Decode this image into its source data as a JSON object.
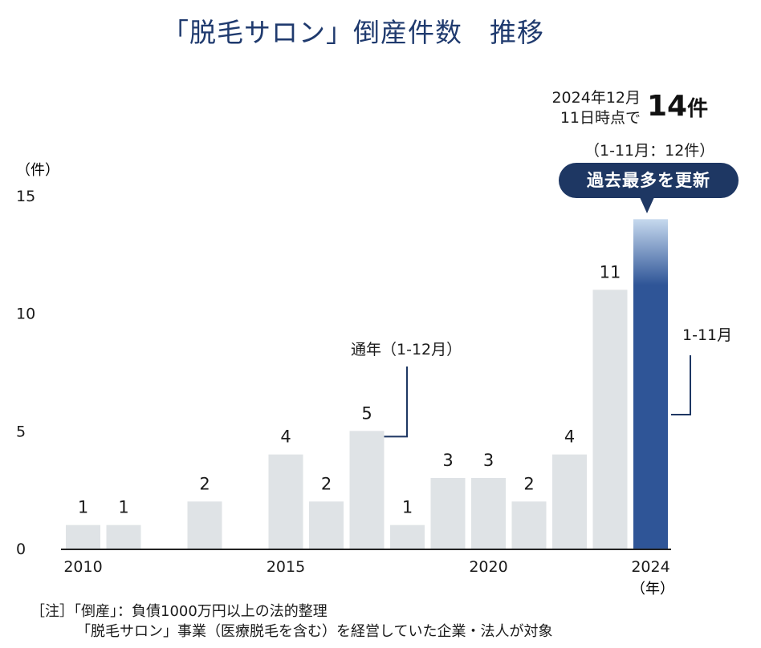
{
  "title": "「脱毛サロン」倒産件数　推移",
  "callout": {
    "date_line1": "2024年12月",
    "date_line2": "11日時点で",
    "count_number": "14",
    "count_unit": "件",
    "subtotal": "（1-11月：12件）",
    "badge": "過去最多を更新"
  },
  "annotations": {
    "full_year": "通年（1-12月）",
    "partial": "1-11月"
  },
  "notes": {
    "line1": "［注］「倒産」：負債1000万円以上の法的整理",
    "line2": "「脱毛サロン」事業（医療脱毛を含む）を経営していた企業・法人が対象"
  },
  "chart_data": {
    "type": "bar",
    "ylabel": "（件）",
    "xlabel": "（年）",
    "ylim": [
      0,
      15
    ],
    "yticks": [
      0,
      5,
      10,
      15
    ],
    "xtick_labels": [
      "2010",
      "2015",
      "2020",
      "2024"
    ],
    "x": [
      2010,
      2011,
      2012,
      2013,
      2014,
      2015,
      2016,
      2017,
      2018,
      2019,
      2020,
      2021,
      2022,
      2023,
      2024
    ],
    "values": [
      1,
      1,
      0,
      2,
      0,
      4,
      2,
      5,
      1,
      3,
      3,
      2,
      4,
      11,
      14
    ],
    "data_labels": [
      "1",
      "1",
      "",
      "2",
      "",
      "4",
      "2",
      "5",
      "1",
      "3",
      "3",
      "2",
      "4",
      "11",
      ""
    ],
    "colors": {
      "bar": "#dfe3e6",
      "highlight": "#2f5597",
      "highlight_top": "#c6d9ee",
      "axis": "#222222",
      "leader": "#1e3763"
    }
  }
}
